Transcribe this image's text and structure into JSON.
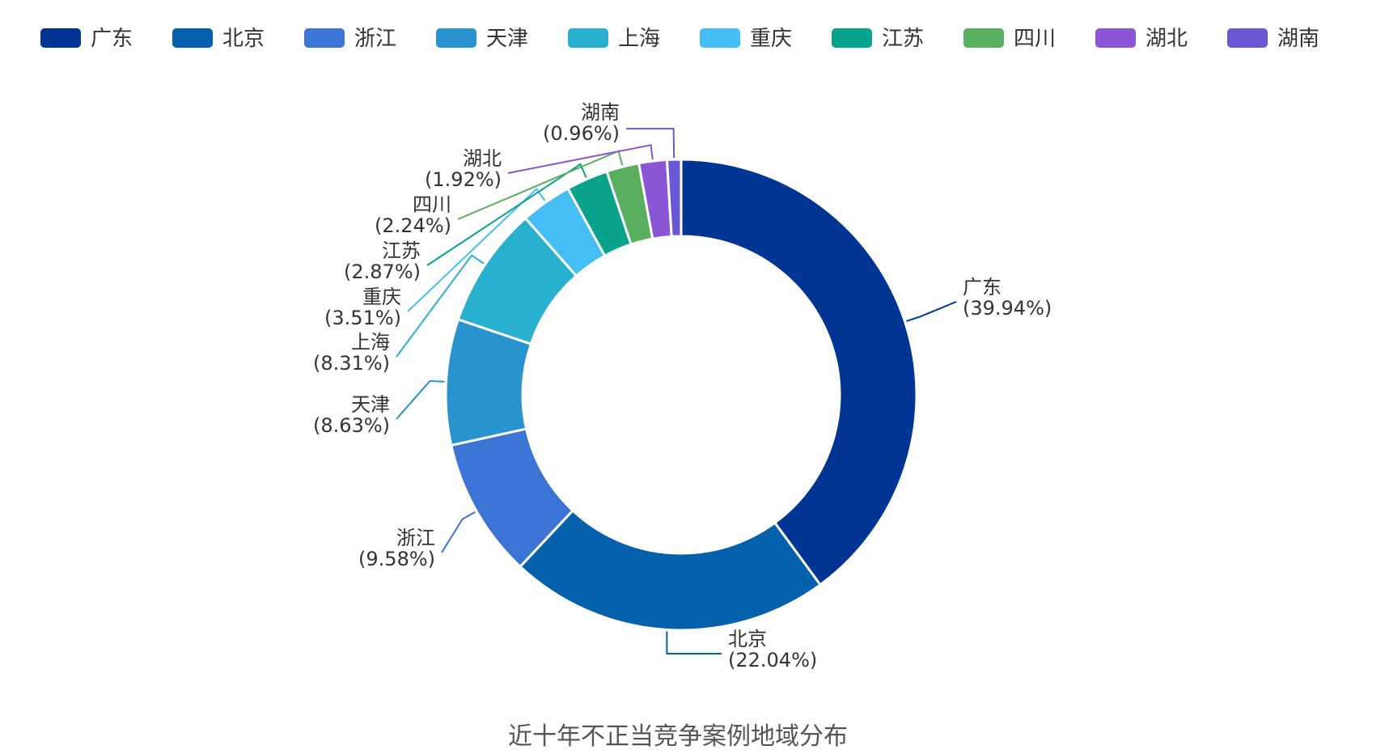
{
  "chart_data": {
    "type": "pie",
    "style": "donut",
    "title": "近十年不正当竞争案例地域分布",
    "legend_position": "top",
    "slices": [
      {
        "label": "广东",
        "value": 39.94,
        "value_text": "(39.94%)",
        "color": "#003594"
      },
      {
        "label": "北京",
        "value": 22.04,
        "value_text": "(22.04%)",
        "color": "#0561ab"
      },
      {
        "label": "浙江",
        "value": 9.58,
        "value_text": "(9.58%)",
        "color": "#3b74d4"
      },
      {
        "label": "天津",
        "value": 8.63,
        "value_text": "(8.63%)",
        "color": "#2993cf"
      },
      {
        "label": "上海",
        "value": 8.31,
        "value_text": "(8.31%)",
        "color": "#29b0cf"
      },
      {
        "label": "重庆",
        "value": 3.51,
        "value_text": "(3.51%)",
        "color": "#45bdf5"
      },
      {
        "label": "江苏",
        "value": 2.87,
        "value_text": "(2.87%)",
        "color": "#09a38b"
      },
      {
        "label": "四川",
        "value": 2.24,
        "value_text": "(2.24%)",
        "color": "#5aae60"
      },
      {
        "label": "湖北",
        "value": 1.92,
        "value_text": "(1.92%)",
        "color": "#8b56d6"
      },
      {
        "label": "湖南",
        "value": 0.96,
        "value_text": "(0.96%)",
        "color": "#6957d3"
      }
    ]
  }
}
